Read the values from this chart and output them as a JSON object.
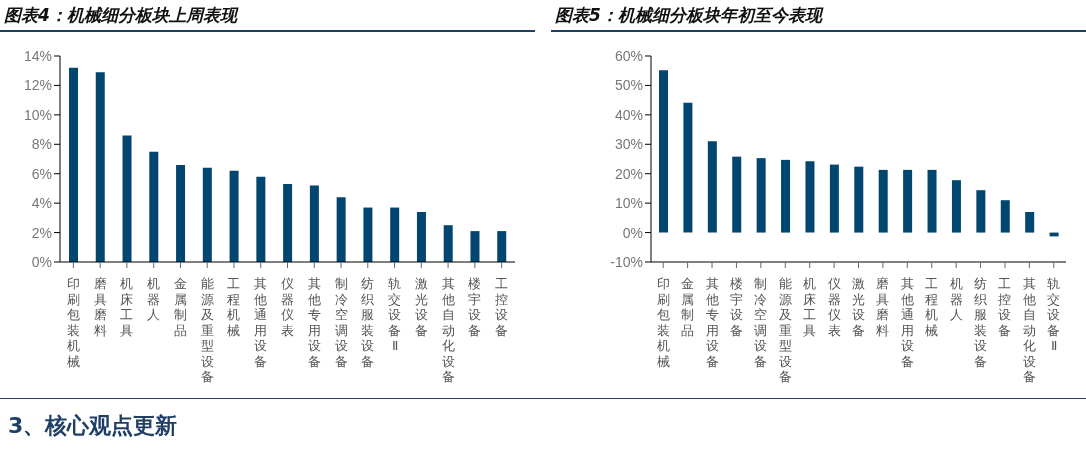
{
  "chart_data": [
    {
      "type": "bar",
      "title": "图表4：机械细分板块上周表现",
      "categories": [
        "印刷包装机械",
        "磨具磨料",
        "机床工具",
        "机器人",
        "金属制品",
        "能源及重型设备",
        "工程机械",
        "其他通用设备",
        "仪器仪表",
        "其他专用设备",
        "制冷空调设备",
        "纺织服装设备",
        "轨交设备Ⅱ",
        "激光设备",
        "其他自动化设备",
        "楼宇设备",
        "工控设备"
      ],
      "values": [
        13.2,
        12.9,
        8.6,
        7.5,
        6.6,
        6.4,
        6.2,
        5.8,
        5.3,
        5.2,
        4.4,
        3.7,
        3.7,
        3.4,
        2.5,
        2.1,
        2.1
      ],
      "color": "#00466e",
      "ylim": [
        0,
        14
      ],
      "yticks": [
        {
          "value": 0,
          "label": "0%"
        },
        {
          "value": 2,
          "label": "2%"
        },
        {
          "value": 4,
          "label": "4%"
        },
        {
          "value": 6,
          "label": "6%"
        },
        {
          "value": 8,
          "label": "8%"
        },
        {
          "value": 10,
          "label": "10%"
        },
        {
          "value": 12,
          "label": "12%"
        },
        {
          "value": 14,
          "label": "14%"
        }
      ]
    },
    {
      "type": "bar",
      "title": "图表5：机械细分板块年初至今表现",
      "categories": [
        "印刷包装机械",
        "金属制品",
        "其他专用设备",
        "楼宇设备",
        "制冷空调设备",
        "能源及重型设备",
        "机床工具",
        "仪器仪表",
        "激光设备",
        "磨具磨料",
        "其他通用设备",
        "工程机械",
        "机器人",
        "纺织服装设备",
        "工控设备",
        "其他自动化设备",
        "轨交设备Ⅱ"
      ],
      "values": [
        55.2,
        44.1,
        31.0,
        25.8,
        25.3,
        24.7,
        24.2,
        23.1,
        22.4,
        21.3,
        21.3,
        21.3,
        17.8,
        14.4,
        11.0,
        7.0,
        -1.3
      ],
      "color": "#00466e",
      "ylim": [
        -10,
        60
      ],
      "yticks": [
        {
          "value": -10,
          "label": "-10%"
        },
        {
          "value": 0,
          "label": "0%"
        },
        {
          "value": 10,
          "label": "10%"
        },
        {
          "value": 20,
          "label": "20%"
        },
        {
          "value": 30,
          "label": "30%"
        },
        {
          "value": 40,
          "label": "40%"
        },
        {
          "value": 50,
          "label": "50%"
        },
        {
          "value": 60,
          "label": "60%"
        }
      ],
      "annotations": [
        "3、核心观点更新"
      ]
    }
  ]
}
